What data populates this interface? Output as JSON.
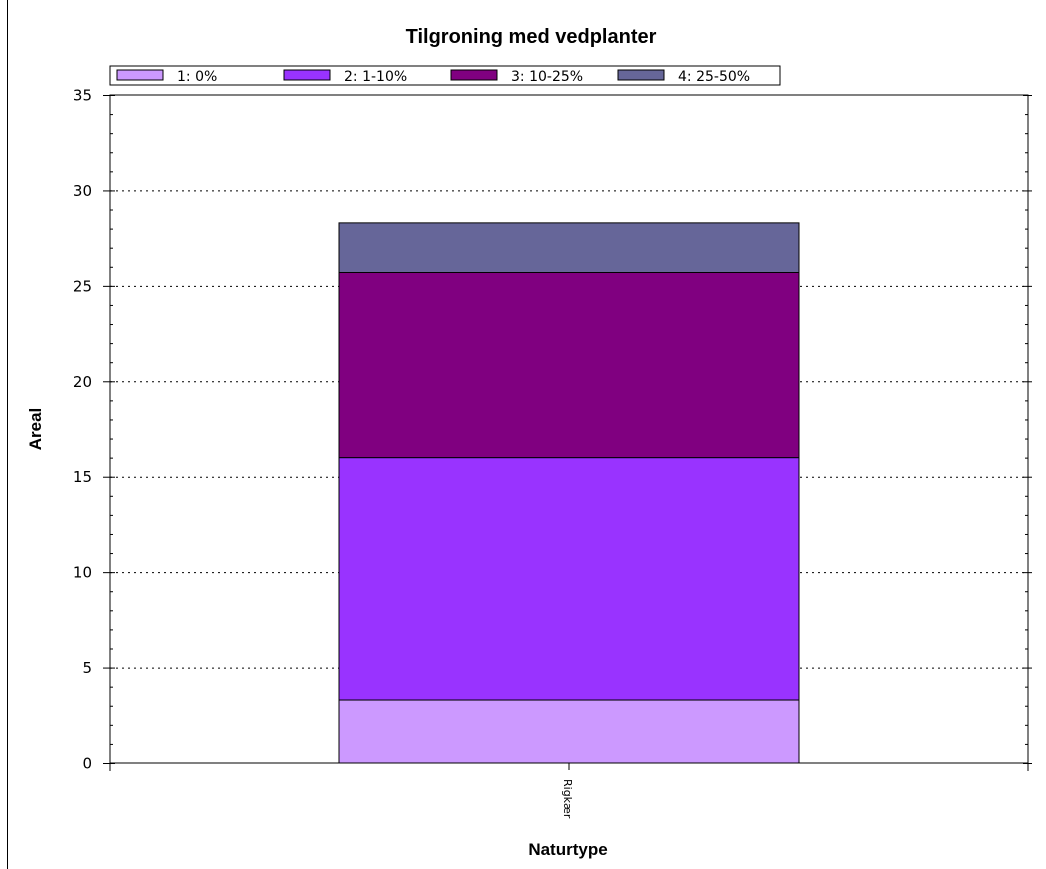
{
  "chart_data": {
    "type": "bar",
    "stacked": true,
    "title": "Tilgroning med vedplanter",
    "xlabel": "Naturtype",
    "ylabel": "Areal",
    "categories": [
      "Rigkær"
    ],
    "ylim": [
      0,
      35
    ],
    "yticks": [
      "0",
      "5",
      "10",
      "15",
      "20",
      "25",
      "30",
      "35"
    ],
    "grid": "horizontal dotted",
    "legend_position": "top",
    "series": [
      {
        "name": "1: 0%",
        "values": [
          3.3
        ],
        "color": "#cc99ff"
      },
      {
        "name": "2: 1-10%",
        "values": [
          12.7
        ],
        "color": "#9933ff"
      },
      {
        "name": "3: 10-25%",
        "values": [
          9.7
        ],
        "color": "#800080"
      },
      {
        "name": "4: 25-50%",
        "values": [
          2.6
        ],
        "color": "#666699"
      }
    ]
  }
}
